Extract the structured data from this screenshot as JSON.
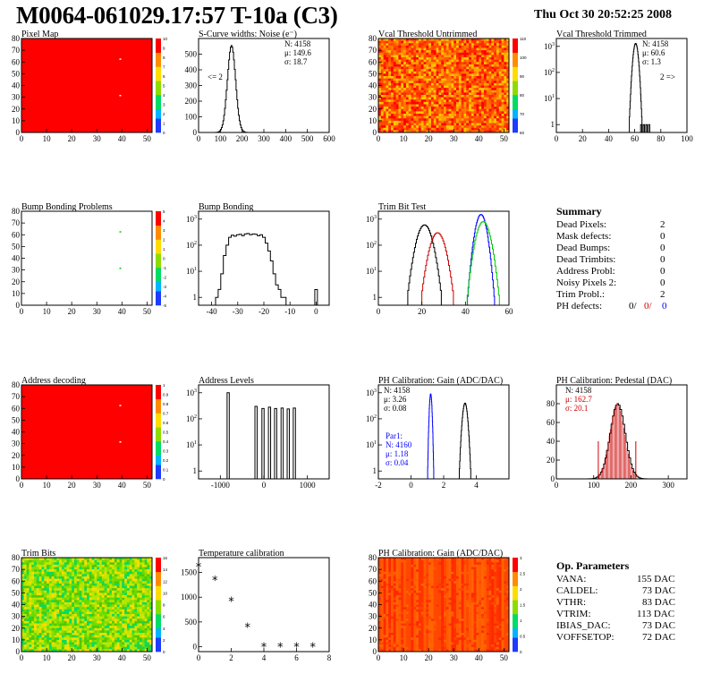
{
  "header": {
    "title": "M0064-061029.17:57 T-10a (C3)",
    "date": "Thu Oct 30 20:52:25 2008"
  },
  "colors": {
    "red": "#ff0000",
    "blue": "#0000ff",
    "green": "#00cc00",
    "dark_red": "#cc0000"
  },
  "chart_data": [
    {
      "id": "pixel_map",
      "type": "heatmap",
      "title": "Pixel Map",
      "x": {
        "min": 0,
        "max": 52,
        "ticks": [
          0,
          10,
          20,
          30,
          40,
          50
        ]
      },
      "y": {
        "min": 0,
        "max": 80,
        "ticks": [
          0,
          10,
          20,
          30,
          40,
          50,
          60,
          70,
          80
        ]
      },
      "fill": "uniform",
      "colorbar_ticks": [
        0,
        1,
        2,
        3,
        4,
        5,
        6,
        7,
        8,
        9,
        10
      ],
      "dead_pixels": [
        [
          39,
          63
        ],
        [
          39,
          32
        ]
      ]
    },
    {
      "id": "scurve_noise",
      "type": "line",
      "title": "S-Curve widths: Noise (e⁻)",
      "x": {
        "min": 0,
        "max": 600,
        "ticks": [
          0,
          100,
          200,
          300,
          400,
          500,
          600
        ]
      },
      "y": {
        "min": 0,
        "max": 600,
        "ticks": [
          0,
          100,
          200,
          300,
          400,
          500
        ]
      },
      "stats": [
        "N: 4158",
        "μ: 149.6",
        "σ: 18.7"
      ],
      "annotation": "<= 2",
      "gauss": {
        "mean": 149.6,
        "sigma": 18.7,
        "peak": 555
      }
    },
    {
      "id": "vcal_untrimmed",
      "type": "heatmap",
      "title": "Vcal Threshold Untrimmed",
      "x": {
        "min": 0,
        "max": 52,
        "ticks": [
          0,
          10,
          20,
          30,
          40,
          50
        ]
      },
      "y": {
        "min": 0,
        "max": 80,
        "ticks": [
          0,
          10,
          20,
          30,
          40,
          50,
          60,
          70,
          80
        ]
      },
      "fill": "noise-orange",
      "colorbar_ticks": [
        60,
        70,
        80,
        90,
        100,
        110
      ]
    },
    {
      "id": "vcal_trimmed",
      "type": "line",
      "title": "Vcal Threshold Trimmed",
      "logy": true,
      "x": {
        "min": 0,
        "max": 100,
        "ticks": [
          0,
          20,
          40,
          60,
          80,
          100
        ]
      },
      "y": {
        "min": 0.5,
        "max": 2000,
        "ticks": [
          1,
          10,
          100,
          1000
        ]
      },
      "stats": [
        "N: 4158",
        "μ: 60.6",
        "σ:  1.3"
      ],
      "annotation": "2 =>",
      "gauss": {
        "mean": 60.6,
        "sigma": 1.3,
        "peak": 1300
      },
      "outliers": [
        [
          65,
          1
        ],
        [
          67,
          1
        ],
        [
          69,
          1
        ],
        [
          71,
          1
        ]
      ]
    },
    {
      "id": "bump_problems",
      "type": "heatmap",
      "title": "Bump Bonding Problems",
      "x": {
        "min": 0,
        "max": 52,
        "ticks": [
          0,
          10,
          20,
          30,
          40,
          50
        ]
      },
      "y": {
        "min": 0,
        "max": 80,
        "ticks": [
          0,
          10,
          20,
          30,
          40,
          50,
          60,
          70,
          80
        ]
      },
      "fill": "empty",
      "colorbar_ticks": [
        -5,
        -4,
        -3,
        -2,
        -1,
        0,
        1,
        2,
        3,
        4,
        5
      ],
      "marks": [
        [
          39,
          63
        ],
        [
          39,
          32
        ]
      ]
    },
    {
      "id": "bump_bonding",
      "type": "line",
      "title": "Bump Bonding",
      "logy": true,
      "x": {
        "min": -45,
        "max": 5,
        "ticks": [
          -40,
          -30,
          -20,
          -10,
          0
        ]
      },
      "y": {
        "min": 0.5,
        "max": 2000,
        "ticks": [
          1,
          10,
          100,
          1000
        ]
      },
      "profile": {
        "x": [
          -38,
          -37,
          -36,
          -35,
          -34,
          -33,
          -32,
          -31,
          -30,
          -29,
          -28,
          -27,
          -26,
          -25,
          -24,
          -23,
          -22,
          -21,
          -20,
          -19,
          -18,
          -17,
          -16,
          -15,
          -14,
          -13,
          -12
        ],
        "y": [
          1,
          2,
          8,
          40,
          100,
          200,
          240,
          220,
          250,
          260,
          230,
          270,
          280,
          250,
          270,
          260,
          230,
          250,
          200,
          120,
          60,
          25,
          8,
          3,
          2,
          1,
          1
        ]
      },
      "outliers": [
        [
          0,
          2
        ]
      ]
    },
    {
      "id": "trim_bit_test",
      "type": "line",
      "title": "Trim Bit Test",
      "logy": true,
      "x": {
        "min": 0,
        "max": 60,
        "ticks": [
          0,
          20,
          40,
          60
        ]
      },
      "y": {
        "min": 0.5,
        "max": 2000,
        "ticks": [
          1,
          10,
          100,
          1000
        ]
      },
      "series": [
        {
          "mean": 21,
          "sigma": 2.2,
          "peak": 600,
          "color": "#000000"
        },
        {
          "mean": 27,
          "sigma": 2.2,
          "peak": 300,
          "color": "#cc0000"
        },
        {
          "mean": 47,
          "sigma": 1.6,
          "peak": 1500,
          "color": "#0000ff"
        },
        {
          "mean": 48,
          "sigma": 2.0,
          "peak": 800,
          "color": "#00cc00"
        }
      ]
    },
    {
      "id": "address_decoding",
      "type": "heatmap",
      "title": "Address decoding",
      "x": {
        "min": 0,
        "max": 52,
        "ticks": [
          0,
          10,
          20,
          30,
          40,
          50
        ]
      },
      "y": {
        "min": 0,
        "max": 80,
        "ticks": [
          0,
          10,
          20,
          30,
          40,
          50,
          60,
          70,
          80
        ]
      },
      "fill": "uniform",
      "colorbar_ticks": [
        0,
        0.1,
        0.2,
        0.3,
        0.4,
        0.5,
        0.6,
        0.7,
        0.8,
        0.9,
        1
      ],
      "dead_pixels": [
        [
          39,
          63
        ],
        [
          39,
          32
        ]
      ]
    },
    {
      "id": "address_levels",
      "type": "line",
      "title": "Address Levels",
      "logy": true,
      "x": {
        "min": -1500,
        "max": 1500,
        "ticks": [
          -1000,
          0,
          1000
        ]
      },
      "y": {
        "min": 0.5,
        "max": 2000,
        "ticks": [
          1,
          10,
          100,
          1000
        ]
      },
      "peaks": [
        [
          -820,
          1000
        ],
        [
          -180,
          300
        ],
        [
          -20,
          250
        ],
        [
          130,
          280
        ],
        [
          270,
          250
        ],
        [
          420,
          260
        ],
        [
          560,
          240
        ],
        [
          700,
          260
        ]
      ]
    },
    {
      "id": "ph_gain",
      "type": "line",
      "title": "PH Calibration: Gain (ADC/DAC)",
      "logy": true,
      "x": {
        "min": -2,
        "max": 6,
        "ticks": [
          -2,
          0,
          2,
          4
        ]
      },
      "y": {
        "min": 0.5,
        "max": 2000,
        "ticks": [
          1,
          10,
          100,
          1000
        ]
      },
      "stats": [
        "N: 4158",
        "μ: 3.26",
        "σ: 0.08"
      ],
      "stats2": [
        "Par1:",
        "N: 4160",
        "μ: 1.18",
        "σ: 0.04"
      ],
      "series": [
        {
          "mean": 3.3,
          "sigma": 0.1,
          "peak": 400,
          "color": "#000000"
        },
        {
          "mean": 1.2,
          "sigma": 0.05,
          "peak": 900,
          "color": "#0000ff"
        }
      ]
    },
    {
      "id": "ph_pedestal",
      "type": "line",
      "title": "PH Calibration: Pedestal (DAC)",
      "x": {
        "min": 0,
        "max": 350,
        "ticks": [
          0,
          100,
          200,
          300
        ]
      },
      "y": {
        "min": 0,
        "max": 100,
        "ticks": [
          0,
          20,
          40,
          60,
          80
        ]
      },
      "stats": [
        "N: 4158",
        "μ: 162.7",
        "σ: 20.1"
      ],
      "gauss": {
        "mean": 162.7,
        "sigma": 20.1,
        "peak": 80
      }
    },
    {
      "id": "trim_bits",
      "type": "heatmap",
      "title": "Trim Bits",
      "x": {
        "min": 0,
        "max": 52,
        "ticks": [
          0,
          10,
          20,
          30,
          40,
          50
        ]
      },
      "y": {
        "min": 0,
        "max": 80,
        "ticks": [
          0,
          10,
          20,
          30,
          40,
          50,
          60,
          70,
          80
        ]
      },
      "fill": "noise-green",
      "colorbar_ticks": [
        0,
        2,
        4,
        6,
        8,
        10,
        12,
        14,
        16
      ]
    },
    {
      "id": "temp_calibration",
      "type": "scatter",
      "title": "Temperature calibration",
      "x": {
        "min": 0,
        "max": 8,
        "ticks": [
          0,
          2,
          4,
          6,
          8
        ]
      },
      "y": {
        "min": -100,
        "max": 1800,
        "ticks": [
          0,
          500,
          1000,
          1500
        ]
      },
      "points": [
        [
          0,
          1620
        ],
        [
          1,
          1350
        ],
        [
          2,
          920
        ],
        [
          3,
          400
        ],
        [
          4,
          0
        ],
        [
          5,
          0
        ],
        [
          6,
          0
        ],
        [
          7,
          0
        ]
      ]
    },
    {
      "id": "ph_gain_map",
      "type": "heatmap",
      "title": "PH Calibration: Gain (ADC/DAC)",
      "x": {
        "min": 0,
        "max": 52,
        "ticks": [
          0,
          10,
          20,
          30,
          40,
          50
        ]
      },
      "y": {
        "min": 0,
        "max": 80,
        "ticks": [
          0,
          10,
          20,
          30,
          40,
          50,
          60,
          70,
          80
        ]
      },
      "fill": "columns-red",
      "colorbar_ticks": [
        0,
        0.5,
        1,
        1.5,
        2,
        2.5,
        3
      ]
    }
  ],
  "summary": {
    "title": "Summary",
    "rows": [
      {
        "label": "Dead Pixels:",
        "value": "2"
      },
      {
        "label": "Mask defects:",
        "value": "0"
      },
      {
        "label": "Dead Bumps:",
        "value": "0"
      },
      {
        "label": "Dead Trimbits:",
        "value": "0"
      },
      {
        "label": "Address Probl:",
        "value": "0"
      },
      {
        "label": "Noisy Pixels 2:",
        "value": "0"
      },
      {
        "label": "Trim Probl.:",
        "value": "2"
      }
    ],
    "ph_label": "PH defects:",
    "ph_values": [
      "0/",
      "0/",
      "0"
    ]
  },
  "op_params": {
    "title": "Op. Parameters",
    "rows": [
      {
        "label": "VANA:",
        "value": "155 DAC"
      },
      {
        "label": "CALDEL:",
        "value": "73 DAC"
      },
      {
        "label": "VTHR:",
        "value": "83 DAC"
      },
      {
        "label": "VTRIM:",
        "value": "113 DAC"
      },
      {
        "label": "IBIAS_DAC:",
        "value": "73 DAC"
      },
      {
        "label": "VOFFSETOP:",
        "value": "72 DAC"
      }
    ]
  }
}
